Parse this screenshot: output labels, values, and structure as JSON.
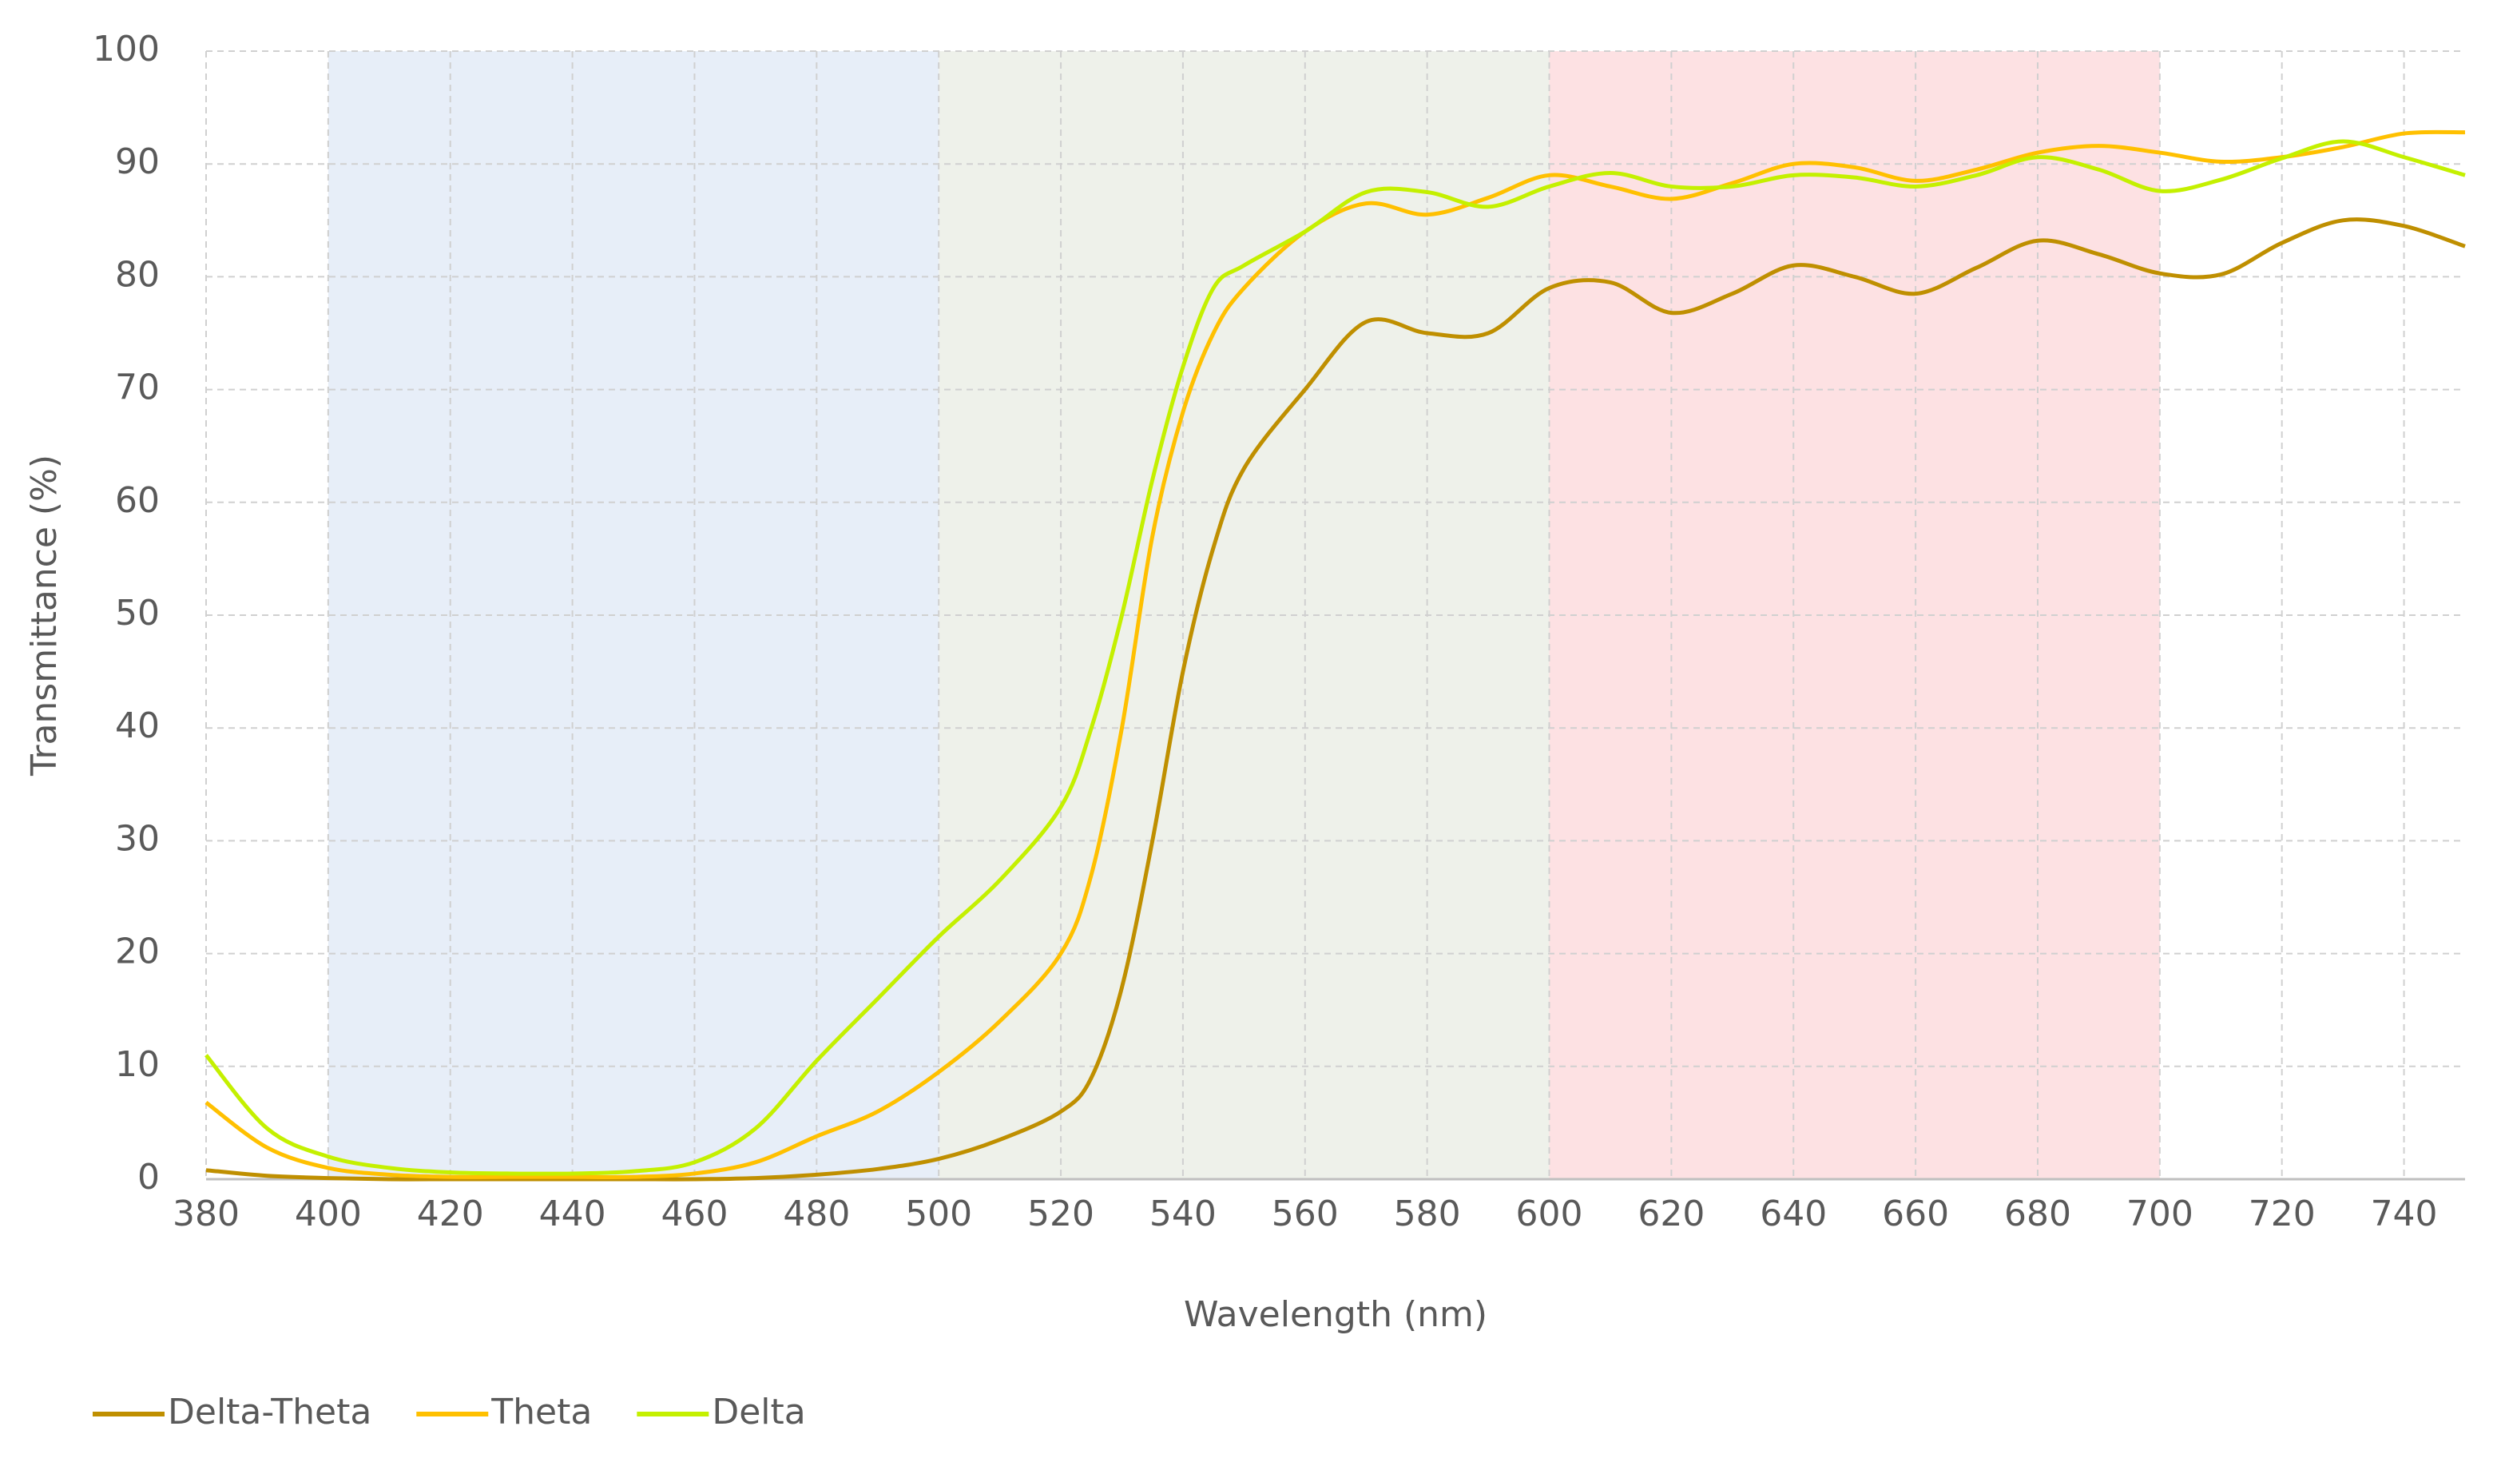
{
  "chart_data": {
    "type": "line",
    "x_label": "Wavelength (nm)",
    "y_label": "Transmittance (%)",
    "x": [
      380,
      390,
      400,
      410,
      420,
      430,
      440,
      450,
      460,
      470,
      480,
      490,
      500,
      510,
      520,
      525,
      530,
      535,
      540,
      545,
      550,
      560,
      570,
      580,
      590,
      600,
      610,
      620,
      630,
      640,
      650,
      660,
      670,
      680,
      690,
      700,
      710,
      720,
      730,
      740,
      750
    ],
    "series": [
      {
        "name": "Delta-Theta",
        "color": "#bf8f00",
        "values": [
          0.8,
          0.3,
          0.1,
          0,
          0,
          0,
          0,
          0,
          0,
          0.1,
          0.4,
          0.9,
          1.8,
          3.5,
          6,
          9,
          17,
          30,
          45,
          56,
          63,
          70,
          76,
          75,
          75,
          79,
          79.5,
          76.8,
          78.5,
          81,
          80,
          78.5,
          80.8,
          83.2,
          82,
          80.3,
          80.2,
          83,
          85,
          84.5,
          82.7
        ]
      },
      {
        "name": "Theta",
        "color": "#ffc000",
        "values": [
          6.8,
          2.8,
          1,
          0.4,
          0.2,
          0.2,
          0.2,
          0.2,
          0.5,
          1.5,
          3.8,
          6,
          9.5,
          14,
          20,
          27,
          40,
          57,
          68,
          75,
          79,
          84,
          86.5,
          85.5,
          87,
          89,
          88,
          86.9,
          88.3,
          90,
          89.7,
          88.5,
          89.5,
          91,
          91.6,
          91,
          90.2,
          90.6,
          91.5,
          92.7,
          92.8
        ]
      },
      {
        "name": "Delta",
        "color": "#c4f000",
        "values": [
          11,
          4.5,
          2,
          1,
          0.6,
          0.5,
          0.5,
          0.7,
          1.5,
          4.5,
          10.5,
          16,
          21.5,
          26.5,
          33,
          40,
          50,
          62,
          72,
          79,
          81,
          84,
          87.5,
          87.5,
          86.2,
          88,
          89.2,
          88,
          88,
          89,
          88.8,
          88,
          89,
          90.6,
          89.5,
          87.6,
          88.6,
          90.5,
          92,
          90.6,
          89
        ]
      }
    ],
    "bands": [
      {
        "from": 400,
        "to": 500,
        "color": "#e7eef8"
      },
      {
        "from": 500,
        "to": 600,
        "color": "#eef1ea"
      },
      {
        "from": 600,
        "to": 700,
        "color": "#fde1e3"
      }
    ],
    "xlim": [
      380,
      750
    ],
    "xticks": [
      380,
      400,
      420,
      440,
      460,
      480,
      500,
      520,
      540,
      560,
      580,
      600,
      620,
      640,
      660,
      680,
      700,
      720,
      740
    ],
    "ylim": [
      0,
      100
    ],
    "yticks": [
      0,
      10,
      20,
      30,
      40,
      50,
      60,
      70,
      80,
      90,
      100
    ],
    "grid": true,
    "legend": "bottom-left"
  }
}
